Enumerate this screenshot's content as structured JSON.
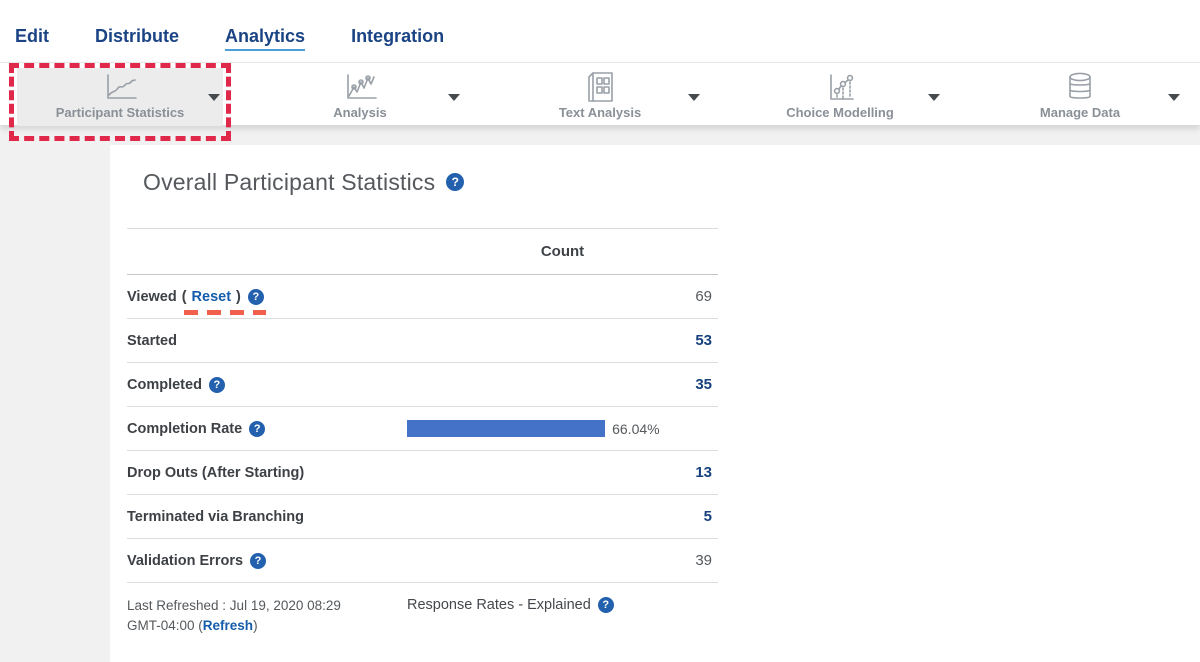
{
  "colors": {
    "nav_blue": "#1b4484",
    "active_tab_underline": "#4a9fd8",
    "link_blue": "#155cab",
    "value_navy": "#16417c",
    "text_gray": "#55595c",
    "bar_blue": "#4472c8",
    "annotation_box_red": "#e0284a",
    "annotation_underline_salmon": "#f1604d",
    "help_icon_blue": "#2361ae",
    "active_tool_bg": "#ececec"
  },
  "nav": {
    "items": [
      {
        "label": "Edit",
        "active": false
      },
      {
        "label": "Distribute",
        "active": false
      },
      {
        "label": "Analytics",
        "active": true
      },
      {
        "label": "Integration",
        "active": false
      }
    ]
  },
  "toolbar": {
    "items": [
      {
        "label": "Participant Statistics",
        "icon": "line-chart-icon",
        "active": true
      },
      {
        "label": "Analysis",
        "icon": "scatter-line-chart-icon",
        "active": false
      },
      {
        "label": "Text Analysis",
        "icon": "document-grid-icon",
        "active": false
      },
      {
        "label": "Choice Modelling",
        "icon": "dotted-trend-icon",
        "active": false
      },
      {
        "label": "Manage Data",
        "icon": "database-icon",
        "active": false
      }
    ]
  },
  "main": {
    "title": "Overall Participant Statistics",
    "table": {
      "count_header": "Count",
      "rows": [
        {
          "label": "Viewed",
          "open_paren": "(",
          "reset_link": "Reset",
          "close_paren": ")",
          "has_help": true,
          "value": "69",
          "value_style": "muted"
        },
        {
          "label": "Started",
          "value": "53",
          "value_style": "link"
        },
        {
          "label": "Completed",
          "has_help": true,
          "value": "35",
          "value_style": "link"
        },
        {
          "label": "Completion Rate",
          "has_help": true,
          "percent_display": "66.04%"
        },
        {
          "label": "Drop Outs (After Starting)",
          "value": "13",
          "value_style": "link"
        },
        {
          "label": "Terminated via Branching",
          "value": "5",
          "value_style": "link"
        },
        {
          "label": "Validation Errors",
          "has_help": true,
          "value": "39",
          "value_style": "muted"
        }
      ],
      "completion_rate_percent": 66.04
    },
    "footer": {
      "last_refreshed_prefix": "Last Refreshed : Jul 19, 2020 08:29 GMT-04:00 (",
      "refresh_link": "Refresh",
      "last_refreshed_suffix": ")",
      "response_rates_label": "Response Rates - Explained"
    }
  }
}
